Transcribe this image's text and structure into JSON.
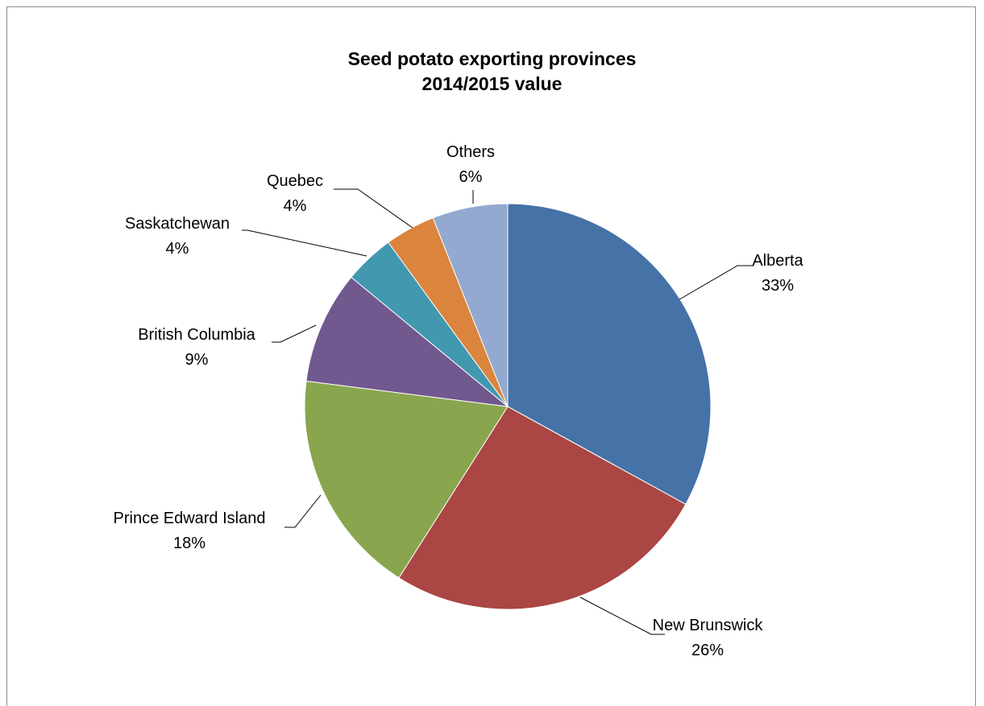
{
  "chart_data": {
    "type": "pie",
    "title": "Seed potato exporting provinces",
    "subtitle": "2014/2015 value",
    "slices": [
      {
        "label": "Alberta",
        "pct_label": "33%",
        "value": 33,
        "color": "#4572A7"
      },
      {
        "label": "New Brunswick",
        "pct_label": "26%",
        "value": 26,
        "color": "#AA4643"
      },
      {
        "label": "Prince Edward Island",
        "pct_label": "18%",
        "value": 18,
        "color": "#89A54E"
      },
      {
        "label": "British Columbia",
        "pct_label": "9%",
        "value": 9,
        "color": "#71588F"
      },
      {
        "label": "Saskatchewan",
        "pct_label": "4%",
        "value": 4,
        "color": "#4198AF"
      },
      {
        "label": "Quebec",
        "pct_label": "4%",
        "value": 4,
        "color": "#DB843D"
      },
      {
        "label": "Others",
        "pct_label": "6%",
        "value": 6,
        "color": "#93A9CF"
      }
    ]
  }
}
